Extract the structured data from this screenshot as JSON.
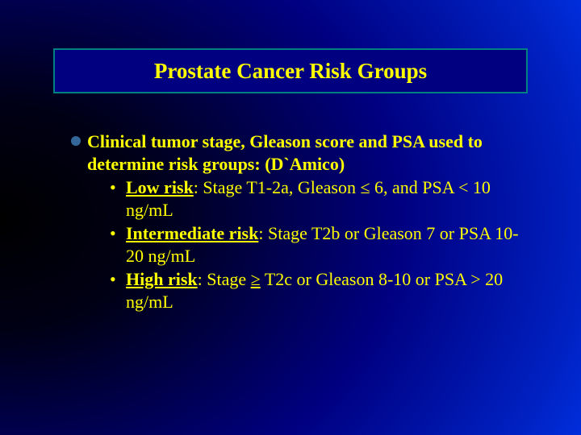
{
  "colors": {
    "title_text": "#ffff00",
    "body_text": "#ffff00",
    "title_border": "#008080",
    "title_bg": "#000080",
    "bullet_disc": "#336699",
    "bg_gradient_start": "#000000",
    "bg_gradient_end": "#0040ff"
  },
  "typography": {
    "title_fontsize": 27,
    "body_fontsize": 22,
    "font_family": "Times New Roman"
  },
  "title": "Prostate Cancer Risk Groups",
  "intro": {
    "bold_lead": "Clinical tumor stage, Gleason score and PSA used to determine risk groups: (D`Amico)"
  },
  "risks": [
    {
      "label": "Low risk",
      "desc": ": Stage T1-2a, Gleason ≤ 6, and PSA < 10 ng/mL"
    },
    {
      "label": "Intermediate risk",
      "desc": ": Stage T2b or Gleason 7 or PSA 10-20 ng/mL"
    },
    {
      "label": "High risk",
      "desc": ": Stage "
    }
  ],
  "high_risk_underline": "≥",
  "high_risk_tail": " T2c or Gleason 8-10 or PSA > 20 ng/mL"
}
